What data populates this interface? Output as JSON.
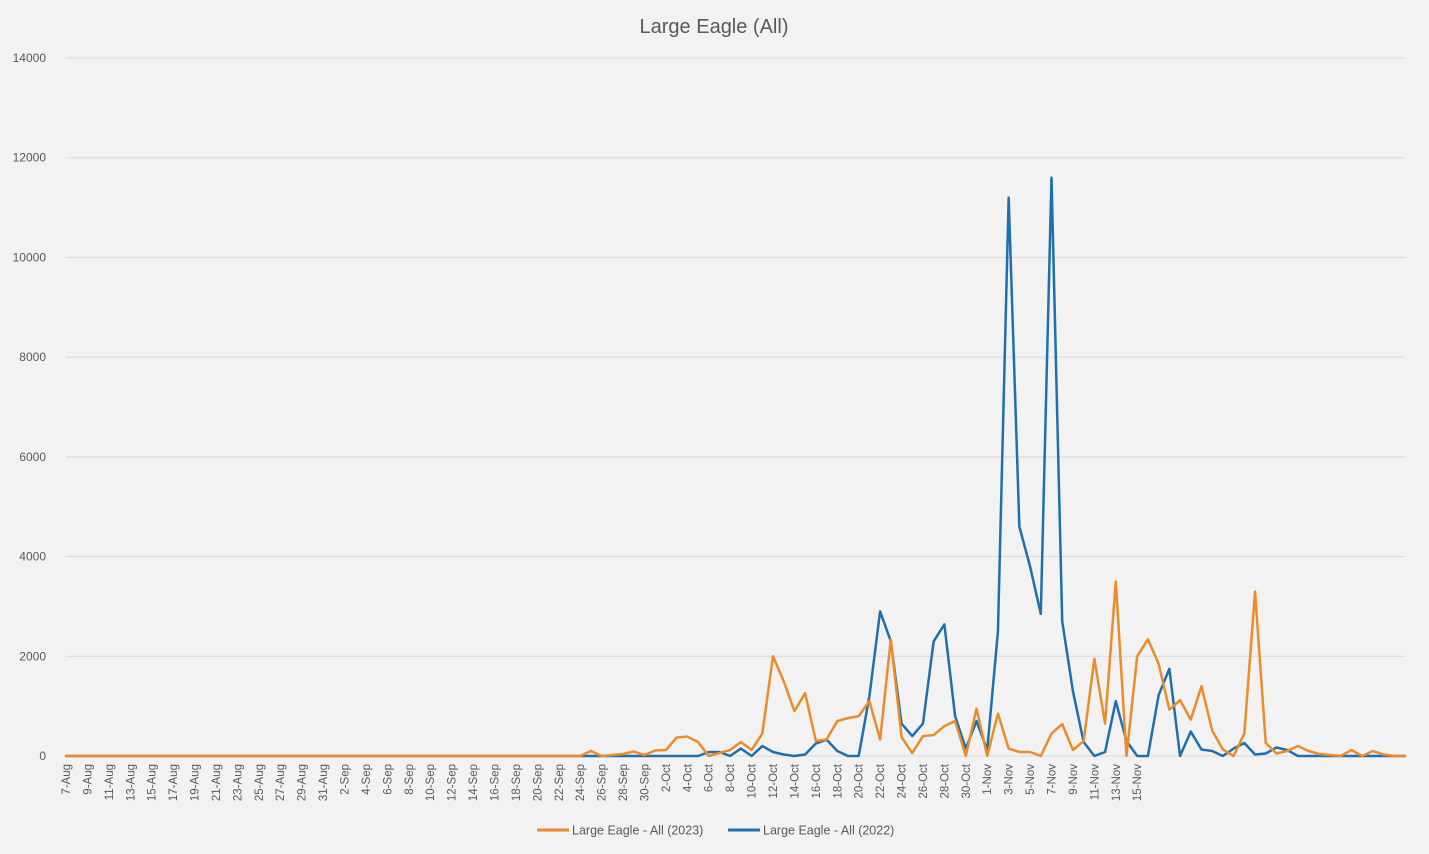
{
  "chart_data": {
    "type": "line",
    "title": "Large Eagle (All)",
    "xlabel": "",
    "ylabel": "",
    "ylim": [
      0,
      14000
    ],
    "yticks": [
      0,
      2000,
      4000,
      6000,
      8000,
      10000,
      12000,
      14000
    ],
    "grid": true,
    "legend_position": "bottom",
    "x_start": "7-Aug",
    "x_end": "16-Nov",
    "xtick_labels": [
      "7-Aug",
      "9-Aug",
      "11-Aug",
      "13-Aug",
      "15-Aug",
      "17-Aug",
      "19-Aug",
      "21-Aug",
      "23-Aug",
      "25-Aug",
      "27-Aug",
      "29-Aug",
      "31-Aug",
      "2-Sep",
      "4-Sep",
      "6-Sep",
      "8-Sep",
      "10-Sep",
      "12-Sep",
      "14-Sep",
      "16-Sep",
      "18-Sep",
      "20-Sep",
      "22-Sep",
      "24-Sep",
      "26-Sep",
      "28-Sep",
      "30-Sep",
      "2-Oct",
      "4-Oct",
      "6-Oct",
      "8-Oct",
      "10-Oct",
      "12-Oct",
      "14-Oct",
      "16-Oct",
      "18-Oct",
      "20-Oct",
      "22-Oct",
      "24-Oct",
      "26-Oct",
      "28-Oct",
      "30-Oct",
      "1-Nov",
      "3-Nov",
      "5-Nov",
      "7-Nov",
      "9-Nov",
      "11-Nov",
      "13-Nov",
      "15-Nov"
    ],
    "series": [
      {
        "name": "Large Eagle - All (2023)",
        "color": "#ed8b2a",
        "values": [
          0,
          0,
          0,
          0,
          0,
          0,
          0,
          0,
          0,
          0,
          0,
          0,
          0,
          0,
          0,
          0,
          0,
          0,
          0,
          0,
          0,
          0,
          0,
          0,
          0,
          0,
          0,
          0,
          0,
          0,
          0,
          0,
          0,
          0,
          0,
          0,
          0,
          0,
          0,
          0,
          0,
          0,
          0,
          0,
          0,
          0,
          0,
          0,
          0,
          100,
          0,
          20,
          40,
          90,
          20,
          110,
          120,
          370,
          390,
          280,
          0,
          60,
          120,
          280,
          120,
          450,
          2000,
          1500,
          900,
          1260,
          300,
          330,
          700,
          760,
          800,
          1100,
          330,
          2340,
          380,
          60,
          400,
          420,
          600,
          700,
          0,
          950,
          0,
          850,
          150,
          80,
          80,
          0,
          450,
          640,
          120,
          300,
          1950,
          650,
          3500,
          0,
          2000,
          2340,
          1850,
          930,
          1120,
          730,
          1400,
          510,
          130,
          0,
          450,
          3300,
          260,
          50,
          100,
          200,
          100,
          40,
          20,
          0,
          120,
          0,
          100,
          30,
          0,
          0
        ]
      },
      {
        "name": "Large Eagle - All (2022)",
        "color": "#1f6fae",
        "values": [
          0,
          0,
          0,
          0,
          0,
          0,
          0,
          0,
          0,
          0,
          0,
          0,
          0,
          0,
          0,
          0,
          0,
          0,
          0,
          0,
          0,
          0,
          0,
          0,
          0,
          0,
          0,
          0,
          0,
          0,
          0,
          0,
          0,
          0,
          0,
          0,
          0,
          0,
          0,
          0,
          0,
          0,
          0,
          0,
          0,
          0,
          0,
          0,
          0,
          0,
          0,
          0,
          0,
          0,
          0,
          0,
          0,
          0,
          0,
          0,
          80,
          80,
          0,
          150,
          0,
          200,
          80,
          30,
          0,
          30,
          250,
          330,
          100,
          0,
          0,
          1200,
          2900,
          2300,
          650,
          400,
          650,
          2300,
          2640,
          800,
          150,
          700,
          120,
          2500,
          11200,
          4600,
          3800,
          2850,
          11600,
          2700,
          1300,
          280,
          0,
          80,
          1100,
          300,
          0,
          0,
          1220,
          1750,
          0,
          490,
          130,
          100,
          0,
          150,
          260,
          30,
          50,
          170,
          120,
          0,
          0,
          0,
          0,
          0,
          0,
          0,
          0,
          0,
          0,
          0
        ]
      }
    ]
  }
}
